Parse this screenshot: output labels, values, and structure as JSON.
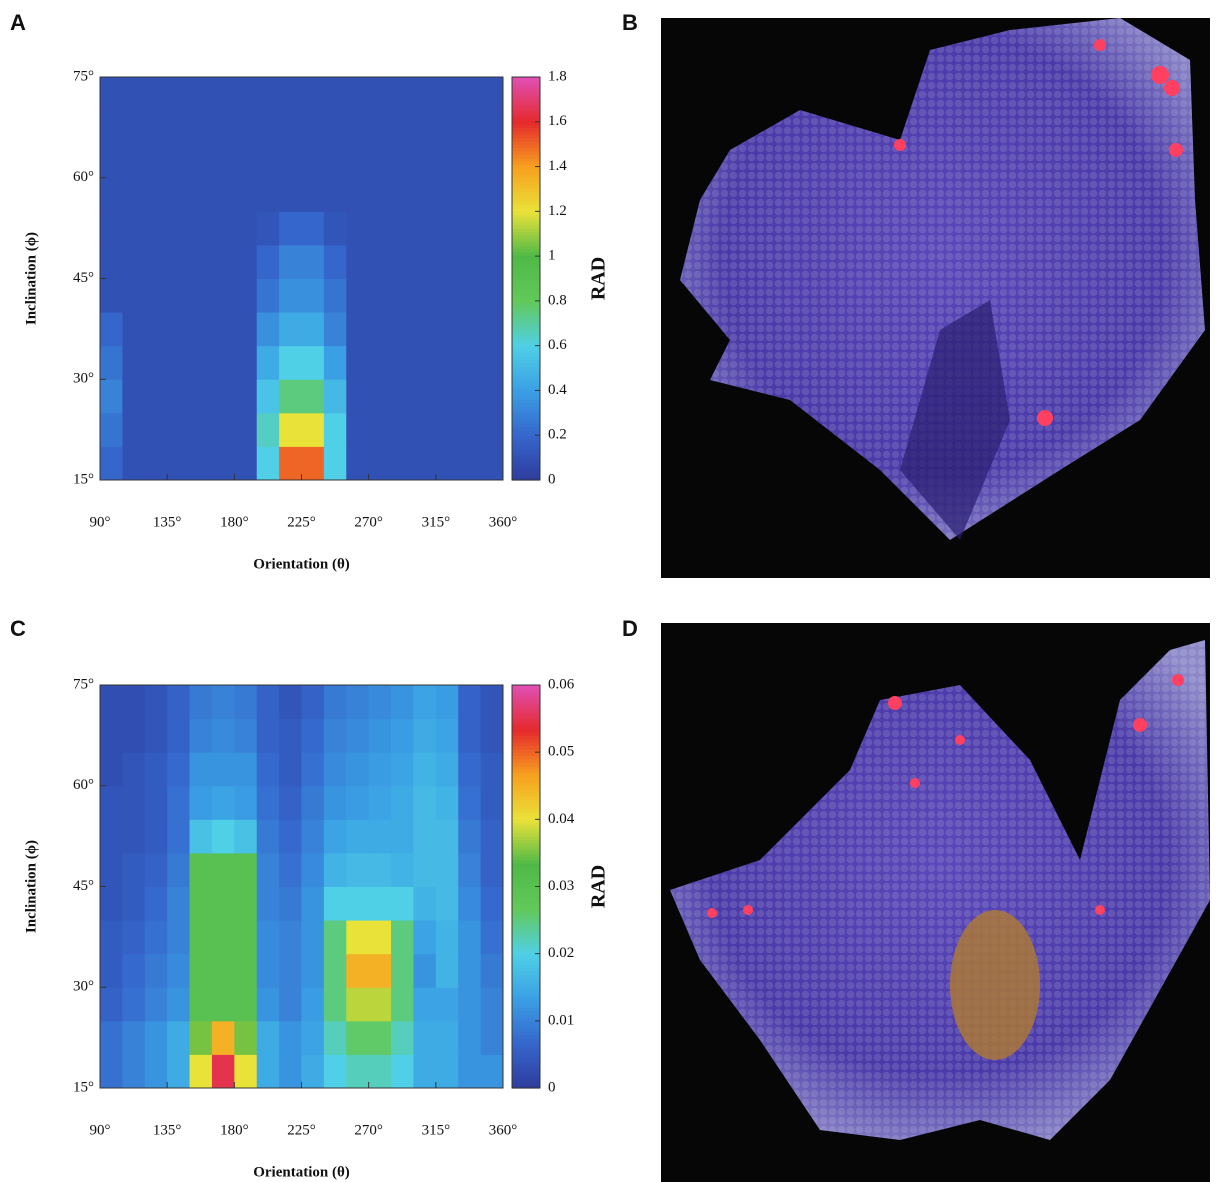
{
  "panel_labels": [
    "A",
    "B",
    "C",
    "D"
  ],
  "chart_data": [
    {
      "type": "heatmap",
      "xlabel": "Orientation (θ)",
      "ylabel": "Inclination (ϕ)",
      "colorbar_label": "RAD",
      "x_edges": [
        90,
        105,
        120,
        135,
        150,
        165,
        180,
        195,
        210,
        225,
        240,
        255,
        270,
        285,
        300,
        315,
        330,
        345,
        360
      ],
      "y_edges": [
        15,
        20,
        25,
        30,
        35,
        40,
        45,
        50,
        55,
        60,
        65,
        70,
        75
      ],
      "xlim": [
        90,
        360
      ],
      "ylim": [
        15,
        75
      ],
      "zlim": [
        0,
        1.8
      ],
      "xticks": [
        {
          "value": 90,
          "label": "90°"
        },
        {
          "value": 135,
          "label": "135°"
        },
        {
          "value": 180,
          "label": "180°"
        },
        {
          "value": 225,
          "label": "225°"
        },
        {
          "value": 270,
          "label": "270°"
        },
        {
          "value": 315,
          "label": "315°"
        },
        {
          "value": 360,
          "label": "360°"
        }
      ],
      "yticks": [
        {
          "value": 15,
          "label": "15°"
        },
        {
          "value": 30,
          "label": "30°"
        },
        {
          "value": 45,
          "label": "45°"
        },
        {
          "value": 60,
          "label": "60°"
        },
        {
          "value": 75,
          "label": "75°"
        }
      ],
      "zticks": [
        0,
        0.2,
        0.4,
        0.6,
        0.8,
        1,
        1.2,
        1.4,
        1.6,
        1.8
      ],
      "colorscale": [
        "#2e3c9c",
        "#3566cc",
        "#3a9fe4",
        "#4fd0e6",
        "#62c95a",
        "#4fb947",
        "#e9e239",
        "#f7a020",
        "#e52a2b",
        "#e04fb5"
      ],
      "z": [
        [
          0.2,
          0.1,
          0.1,
          0.1,
          0.1,
          0.1,
          0.1,
          0.6,
          1.5,
          1.5,
          0.6,
          0.1,
          0.1,
          0.1,
          0.1,
          0.1,
          0.1,
          0.1
        ],
        [
          0.25,
          0.1,
          0.1,
          0.1,
          0.1,
          0.1,
          0.1,
          0.65,
          1.2,
          1.2,
          0.6,
          0.1,
          0.1,
          0.1,
          0.1,
          0.1,
          0.1,
          0.1
        ],
        [
          0.3,
          0.1,
          0.1,
          0.1,
          0.1,
          0.1,
          0.1,
          0.55,
          0.75,
          0.75,
          0.5,
          0.1,
          0.1,
          0.1,
          0.1,
          0.1,
          0.1,
          0.1
        ],
        [
          0.25,
          0.1,
          0.1,
          0.1,
          0.1,
          0.1,
          0.1,
          0.45,
          0.6,
          0.6,
          0.4,
          0.1,
          0.1,
          0.1,
          0.1,
          0.1,
          0.1,
          0.1
        ],
        [
          0.2,
          0.1,
          0.1,
          0.1,
          0.1,
          0.1,
          0.1,
          0.35,
          0.45,
          0.45,
          0.3,
          0.1,
          0.1,
          0.1,
          0.1,
          0.1,
          0.1,
          0.1
        ],
        [
          0.1,
          0.1,
          0.1,
          0.1,
          0.1,
          0.1,
          0.1,
          0.25,
          0.35,
          0.35,
          0.25,
          0.1,
          0.1,
          0.1,
          0.1,
          0.1,
          0.1,
          0.1
        ],
        [
          0.1,
          0.1,
          0.1,
          0.1,
          0.1,
          0.1,
          0.1,
          0.2,
          0.3,
          0.3,
          0.2,
          0.1,
          0.1,
          0.1,
          0.1,
          0.1,
          0.1,
          0.1
        ],
        [
          0.1,
          0.1,
          0.1,
          0.1,
          0.1,
          0.1,
          0.1,
          0.12,
          0.2,
          0.2,
          0.12,
          0.1,
          0.1,
          0.1,
          0.1,
          0.1,
          0.1,
          0.1
        ],
        [
          0.1,
          0.1,
          0.1,
          0.1,
          0.1,
          0.1,
          0.1,
          0.1,
          0.1,
          0.1,
          0.1,
          0.1,
          0.1,
          0.1,
          0.1,
          0.1,
          0.1,
          0.1
        ],
        [
          0.1,
          0.1,
          0.1,
          0.1,
          0.1,
          0.1,
          0.1,
          0.1,
          0.1,
          0.1,
          0.1,
          0.1,
          0.1,
          0.1,
          0.1,
          0.1,
          0.1,
          0.1
        ],
        [
          0.1,
          0.1,
          0.1,
          0.1,
          0.1,
          0.1,
          0.1,
          0.1,
          0.1,
          0.1,
          0.1,
          0.1,
          0.1,
          0.1,
          0.1,
          0.1,
          0.1,
          0.1
        ],
        [
          0.1,
          0.1,
          0.1,
          0.1,
          0.1,
          0.1,
          0.1,
          0.1,
          0.1,
          0.1,
          0.1,
          0.1,
          0.1,
          0.1,
          0.1,
          0.1,
          0.1,
          0.1
        ]
      ]
    },
    {
      "type": "heatmap",
      "xlabel": "Orientation (θ)",
      "ylabel": "Inclination (ϕ)",
      "colorbar_label": "RAD",
      "x_edges": [
        90,
        105,
        120,
        135,
        150,
        165,
        180,
        195,
        210,
        225,
        240,
        255,
        270,
        285,
        300,
        315,
        330,
        345,
        360
      ],
      "y_edges": [
        15,
        20,
        25,
        30,
        35,
        40,
        45,
        50,
        55,
        60,
        65,
        70,
        75
      ],
      "xlim": [
        90,
        360
      ],
      "ylim": [
        15,
        75
      ],
      "zlim": [
        0,
        0.06
      ],
      "xticks": [
        {
          "value": 90,
          "label": "90°"
        },
        {
          "value": 135,
          "label": "135°"
        },
        {
          "value": 180,
          "label": "180°"
        },
        {
          "value": 225,
          "label": "225°"
        },
        {
          "value": 270,
          "label": "270°"
        },
        {
          "value": 315,
          "label": "315°"
        },
        {
          "value": 360,
          "label": "360°"
        }
      ],
      "yticks": [
        {
          "value": 15,
          "label": "15°"
        },
        {
          "value": 30,
          "label": "30°"
        },
        {
          "value": 45,
          "label": "45°"
        },
        {
          "value": 60,
          "label": "60°"
        },
        {
          "value": 75,
          "label": "75°"
        }
      ],
      "zticks": [
        0,
        0.01,
        0.02,
        0.03,
        0.04,
        0.05,
        0.06
      ],
      "colorscale": [
        "#2e3c9c",
        "#3566cc",
        "#3a9fe4",
        "#4fd0e6",
        "#62c95a",
        "#4fb947",
        "#e9e239",
        "#f7a020",
        "#e52a2b",
        "#e04fb5"
      ],
      "z": [
        [
          0.008,
          0.01,
          0.012,
          0.015,
          0.04,
          0.055,
          0.04,
          0.015,
          0.012,
          0.015,
          0.02,
          0.022,
          0.022,
          0.02,
          0.015,
          0.015,
          0.012,
          0.012
        ],
        [
          0.008,
          0.01,
          0.012,
          0.015,
          0.035,
          0.045,
          0.035,
          0.015,
          0.012,
          0.014,
          0.022,
          0.026,
          0.026,
          0.022,
          0.015,
          0.015,
          0.012,
          0.01
        ],
        [
          0.006,
          0.008,
          0.01,
          0.012,
          0.03,
          0.03,
          0.03,
          0.012,
          0.01,
          0.013,
          0.025,
          0.038,
          0.038,
          0.025,
          0.014,
          0.014,
          0.012,
          0.01
        ],
        [
          0.005,
          0.007,
          0.009,
          0.011,
          0.03,
          0.03,
          0.03,
          0.011,
          0.01,
          0.012,
          0.025,
          0.045,
          0.045,
          0.025,
          0.012,
          0.016,
          0.012,
          0.009
        ],
        [
          0.005,
          0.006,
          0.008,
          0.01,
          0.03,
          0.03,
          0.03,
          0.011,
          0.01,
          0.012,
          0.025,
          0.04,
          0.04,
          0.025,
          0.014,
          0.016,
          0.012,
          0.008
        ],
        [
          0.004,
          0.005,
          0.007,
          0.01,
          0.03,
          0.03,
          0.03,
          0.01,
          0.009,
          0.012,
          0.02,
          0.02,
          0.02,
          0.02,
          0.016,
          0.017,
          0.011,
          0.007
        ],
        [
          0.004,
          0.005,
          0.006,
          0.009,
          0.03,
          0.03,
          0.03,
          0.01,
          0.008,
          0.011,
          0.016,
          0.017,
          0.017,
          0.016,
          0.017,
          0.017,
          0.01,
          0.006
        ],
        [
          0.004,
          0.004,
          0.005,
          0.008,
          0.018,
          0.02,
          0.018,
          0.009,
          0.007,
          0.01,
          0.014,
          0.015,
          0.015,
          0.015,
          0.017,
          0.017,
          0.009,
          0.006
        ],
        [
          0.004,
          0.004,
          0.005,
          0.008,
          0.013,
          0.014,
          0.013,
          0.008,
          0.006,
          0.009,
          0.012,
          0.013,
          0.014,
          0.015,
          0.017,
          0.016,
          0.008,
          0.005
        ],
        [
          0.003,
          0.004,
          0.005,
          0.007,
          0.012,
          0.012,
          0.012,
          0.007,
          0.005,
          0.008,
          0.011,
          0.012,
          0.013,
          0.014,
          0.016,
          0.015,
          0.007,
          0.005
        ],
        [
          0.003,
          0.003,
          0.004,
          0.006,
          0.01,
          0.011,
          0.01,
          0.006,
          0.005,
          0.007,
          0.01,
          0.011,
          0.012,
          0.013,
          0.015,
          0.014,
          0.006,
          0.004
        ],
        [
          0.003,
          0.003,
          0.004,
          0.006,
          0.009,
          0.01,
          0.009,
          0.006,
          0.004,
          0.006,
          0.009,
          0.01,
          0.011,
          0.012,
          0.014,
          0.013,
          0.006,
          0.004
        ]
      ]
    }
  ]
}
